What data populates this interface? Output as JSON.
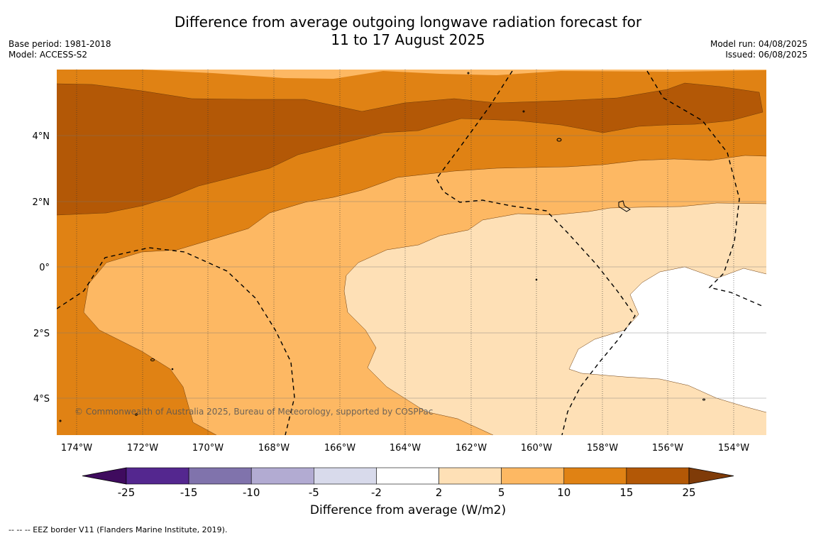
{
  "title": {
    "line1": "Difference from average outgoing longwave radiation forecast for",
    "line2": "11 to 17 August 2025"
  },
  "left_info": {
    "base_period": "Base period: 1981-2018",
    "model": "Model: ACCESS-S2"
  },
  "right_info": {
    "model_run": "Model run: 04/08/2025",
    "issued": "Issued: 06/08/2025"
  },
  "map": {
    "lat_labels": [
      "4°N",
      "2°N",
      "0°",
      "2°S",
      "4°S"
    ],
    "lon_labels": [
      "174°W",
      "172°W",
      "170°W",
      "168°W",
      "166°W",
      "164°W",
      "162°W",
      "160°W",
      "158°W",
      "156°W",
      "154°W"
    ],
    "copyright": "© Commonwealth of Australia 2025, Bureau of Meteorology, supported by COSPPac"
  },
  "colorbar": {
    "ticks": [
      "-25",
      "-15",
      "-10",
      "-5",
      "-2",
      "2",
      "5",
      "10",
      "15",
      "25"
    ],
    "colors": [
      "#3f0b5e",
      "#54278f",
      "#8073ac",
      "#b2abd2",
      "#d8daeb",
      "#ffffff",
      "#fee0b6",
      "#fdb863",
      "#e08214",
      "#b35806",
      "#7f3b08"
    ],
    "title": "Difference from average (W/m2)"
  },
  "footnote": "--  --  -- EEZ border V11 (Flanders Marine Institute, 2019)."
}
